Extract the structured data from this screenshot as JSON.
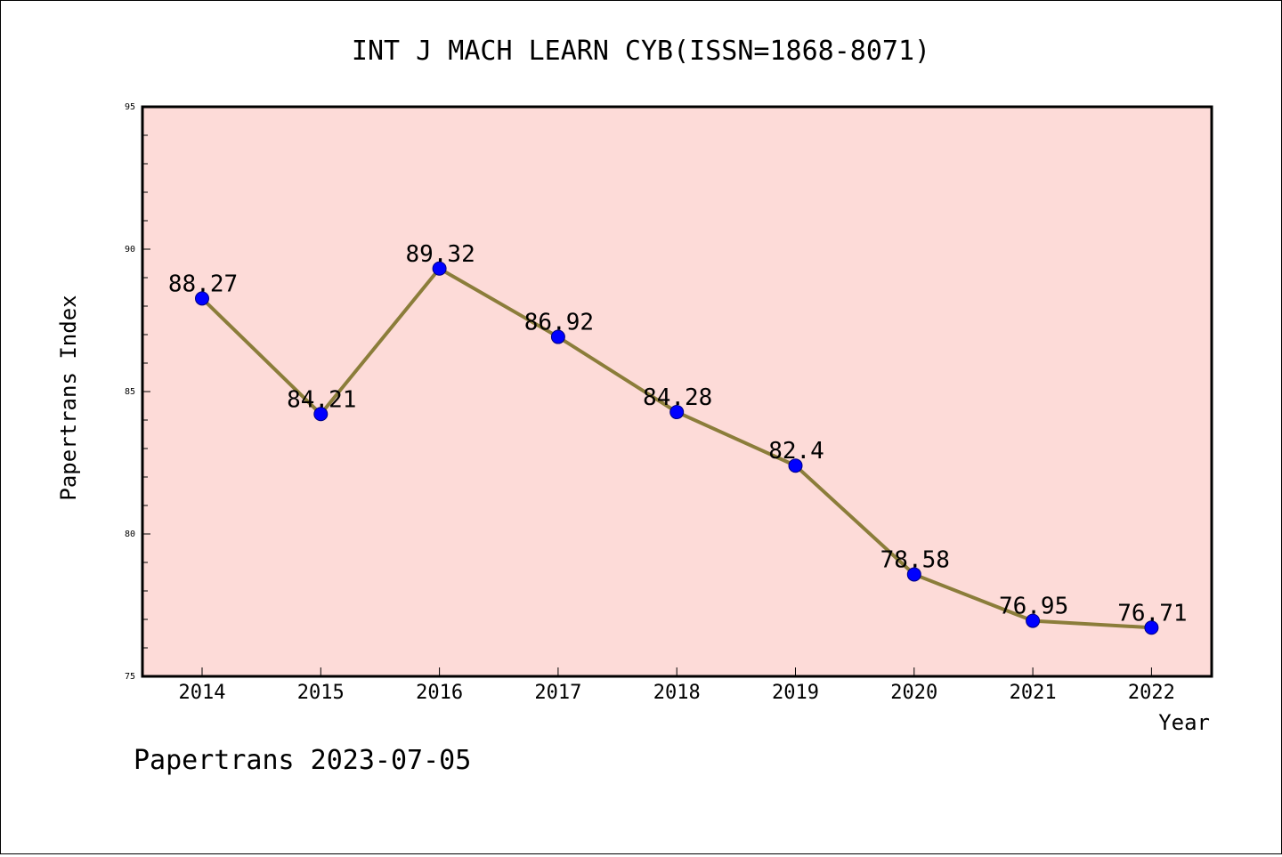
{
  "chart_data": {
    "type": "line",
    "title": "INT J MACH LEARN CYB(ISSN=1868-8071)",
    "xlabel": "Year",
    "ylabel": "Papertrans Index",
    "categories": [
      "2014",
      "2015",
      "2016",
      "2017",
      "2018",
      "2019",
      "2020",
      "2021",
      "2022"
    ],
    "values": [
      88.27,
      84.21,
      89.32,
      86.92,
      84.28,
      82.4,
      78.58,
      76.95,
      76.71
    ],
    "data_labels": [
      "88.27",
      "84.21",
      "89.32",
      "86.92",
      "84.28",
      "82.4",
      "78.58",
      "76.95",
      "76.71"
    ],
    "ylim": [
      75,
      95
    ],
    "y_ticks": [
      75,
      80,
      85,
      90,
      95
    ],
    "y_tick_labels": [
      "75",
      "80",
      "85",
      "90",
      "95"
    ],
    "y_minor_step": 1,
    "grid": false,
    "legend": "none",
    "colors": {
      "plot_background": "#fddbd8",
      "line": "#8b7d3a",
      "marker": "#0000ff",
      "axis": "#000000"
    }
  },
  "footer": {
    "source": "Papertrans 2023-07-05"
  }
}
